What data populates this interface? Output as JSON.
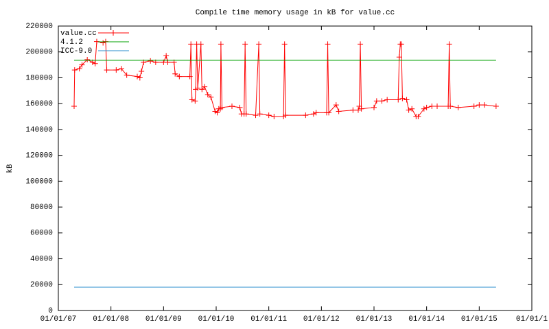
{
  "chart_data": {
    "type": "line",
    "title": "Compile time memory usage in kB for value.cc",
    "ylabel": "kB",
    "xlim": [
      2007,
      2016
    ],
    "xticks": [
      {
        "value": 2007,
        "label": "01/01/07"
      },
      {
        "value": 2008,
        "label": "01/01/08"
      },
      {
        "value": 2009,
        "label": "01/01/09"
      },
      {
        "value": 2010,
        "label": "01/01/10"
      },
      {
        "value": 2011,
        "label": "01/01/11"
      },
      {
        "value": 2012,
        "label": "01/01/12"
      },
      {
        "value": 2013,
        "label": "01/01/13"
      },
      {
        "value": 2014,
        "label": "01/01/14"
      },
      {
        "value": 2015,
        "label": "01/01/15"
      },
      {
        "value": 2016,
        "label": "01/01/1"
      }
    ],
    "ylim": [
      0,
      220000
    ],
    "yticks": [
      0,
      20000,
      40000,
      60000,
      80000,
      100000,
      120000,
      140000,
      160000,
      180000,
      200000,
      220000
    ],
    "legend": "top-left",
    "series": [
      {
        "name": "value.cc",
        "color": "#ff0000",
        "marker": "plus",
        "x": [
          2007.3,
          2007.31,
          2007.4,
          2007.45,
          2007.55,
          2007.65,
          2007.7,
          2007.73,
          2007.85,
          2007.9,
          2007.92,
          2008.1,
          2008.2,
          2008.3,
          2008.5,
          2008.55,
          2008.58,
          2008.62,
          2008.75,
          2008.85,
          2009.0,
          2009.05,
          2009.08,
          2009.2,
          2009.22,
          2009.3,
          2009.5,
          2009.52,
          2009.54,
          2009.6,
          2009.61,
          2009.63,
          2009.65,
          2009.71,
          2009.73,
          2009.78,
          2009.84,
          2009.9,
          2009.98,
          2010.02,
          2010.05,
          2010.08,
          2010.09,
          2010.11,
          2010.3,
          2010.45,
          2010.48,
          2010.53,
          2010.55,
          2010.57,
          2010.75,
          2010.81,
          2010.83,
          2011.0,
          2011.1,
          2011.28,
          2011.3,
          2011.32,
          2011.7,
          2011.85,
          2011.9,
          2012.1,
          2012.12,
          2012.14,
          2012.28,
          2012.33,
          2012.6,
          2012.7,
          2012.72,
          2012.74,
          2012.76,
          2013.0,
          2013.05,
          2013.15,
          2013.25,
          2013.46,
          2013.48,
          2013.5,
          2013.52,
          2013.54,
          2013.62,
          2013.66,
          2013.72,
          2013.8,
          2013.84,
          2013.95,
          2014.0,
          2014.1,
          2014.2,
          2014.41,
          2014.43,
          2014.45,
          2014.6,
          2014.9,
          2015.0,
          2015.1,
          2015.32
        ],
        "values": [
          158000,
          186000,
          187000,
          190000,
          194000,
          192000,
          191000,
          208000,
          207000,
          208000,
          186000,
          186000,
          187000,
          182000,
          181000,
          180000,
          185000,
          192000,
          193000,
          192000,
          192000,
          197000,
          192000,
          192000,
          183000,
          181000,
          181000,
          206000,
          163000,
          162000,
          171000,
          206000,
          172000,
          206000,
          171000,
          173000,
          167000,
          165000,
          154000,
          153000,
          156000,
          156000,
          206000,
          157000,
          158000,
          157000,
          152000,
          152000,
          206000,
          152000,
          151000,
          206000,
          152000,
          151000,
          150000,
          150000,
          206000,
          151000,
          151000,
          152000,
          153000,
          153000,
          206000,
          153000,
          159000,
          154000,
          155000,
          155000,
          158000,
          206000,
          156000,
          157000,
          162000,
          162000,
          163000,
          163000,
          196000,
          206000,
          206000,
          164000,
          163000,
          155000,
          156000,
          150000,
          150000,
          156000,
          157000,
          158000,
          158000,
          158000,
          206000,
          158000,
          157000,
          158000,
          159000,
          159000,
          158000
        ]
      },
      {
        "name": "4.1.2",
        "color": "#00a000",
        "x": [
          2007.3,
          2015.32
        ],
        "values": [
          193500,
          193500
        ]
      },
      {
        "name": "ICC-9.0",
        "color": "#2a8ccc",
        "x": [
          2007.3,
          2015.32
        ],
        "values": [
          18000,
          18000
        ]
      }
    ]
  }
}
